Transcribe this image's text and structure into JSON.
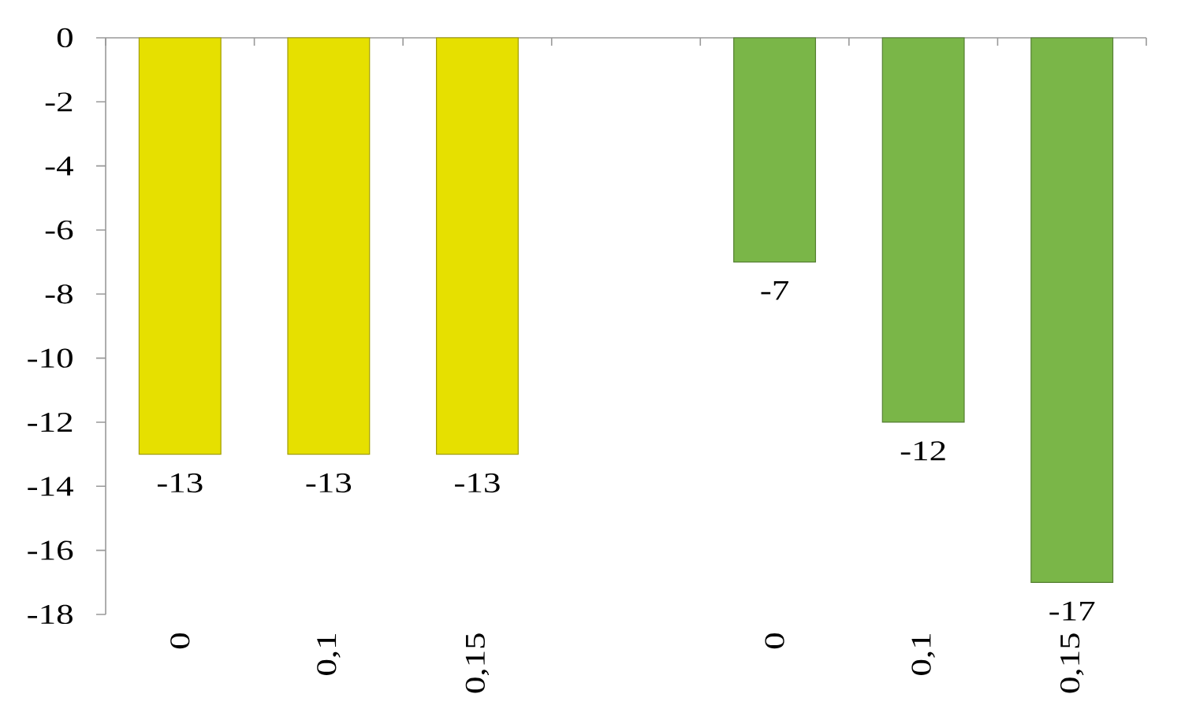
{
  "chart_data": {
    "type": "bar",
    "categories": [
      "0",
      "0,1",
      "0,15",
      null,
      "0",
      "0,1",
      "0,15"
    ],
    "values": [
      -13,
      -13,
      -13,
      null,
      -7,
      -12,
      -17
    ],
    "colors": [
      "#e6e000",
      "#e6e000",
      "#e6e000",
      null,
      "#7ab648",
      "#7ab648",
      "#7ab648"
    ],
    "ylim": [
      -18,
      0
    ],
    "yticks": [
      -18,
      -16,
      -14,
      -12,
      -10,
      -8,
      -6,
      -4,
      -2,
      0
    ],
    "data_labels": true
  }
}
